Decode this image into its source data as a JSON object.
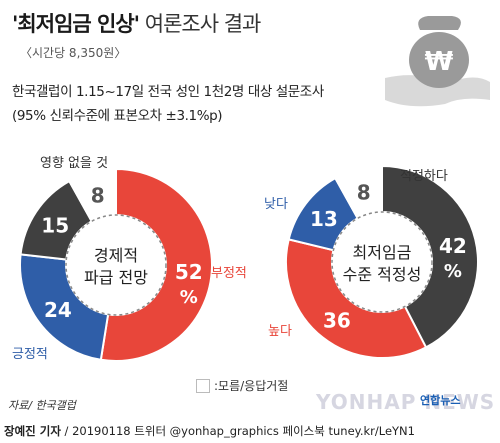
{
  "header": {
    "title_bold": "'최저임금 인상'",
    "title_rest": " 여론조사 결과",
    "subtitle": "〈시간당 8,350원〉",
    "survey_line1": "한국갤럽이 1.15~17일 전국 성인 1천2명 대상 설문조사",
    "survey_line2": "(95% 신뢰수준에 표본오차 ±3.1%p)",
    "icon": "money-bag-hand-icon",
    "icon_symbol": "₩"
  },
  "chart_data": [
    {
      "type": "pie",
      "title_line1": "경제적",
      "title_line2": "파급 전망",
      "slices": [
        {
          "label": "부정적",
          "value": 52,
          "color": "#e8463a",
          "display": "52",
          "unit": "%"
        },
        {
          "label": "긍정적",
          "value": 24,
          "color": "#2f5ea8",
          "display": "24"
        },
        {
          "label": "영향 없을 것",
          "value": 15,
          "color": "#404040",
          "display": "15"
        },
        {
          "label": "",
          "value": 8,
          "color": "#ffffff",
          "display": "8"
        }
      ]
    },
    {
      "type": "pie",
      "title_line1": "최저임금",
      "title_line2": "수준 적정성",
      "slices": [
        {
          "label": "적정하다",
          "value": 42,
          "color": "#404040",
          "display": "42",
          "unit": "%"
        },
        {
          "label": "높다",
          "value": 36,
          "color": "#e8463a",
          "display": "36"
        },
        {
          "label": "낮다",
          "value": 13,
          "color": "#2f5ea8",
          "display": "13"
        },
        {
          "label": "",
          "value": 8,
          "color": "#ffffff",
          "display": "8"
        }
      ]
    }
  ],
  "labels": {
    "c1_negative": "부정적",
    "c1_positive": "긍정적",
    "c1_none": "영향 없을 것",
    "c2_adequate": "적정하다",
    "c2_high": "높다",
    "c2_low": "낮다"
  },
  "legend": {
    "text": ":모름/응답거절"
  },
  "footer": {
    "source": "자료/ 한국갤럽",
    "byline_name": "장예진 기자",
    "byline_rest": " / 20190118 트위터 @yonhap_graphics  페이스북 tuney.kr/LeYN1",
    "watermark": "YONHAP NEWS",
    "watermark_small": "연합뉴스"
  }
}
